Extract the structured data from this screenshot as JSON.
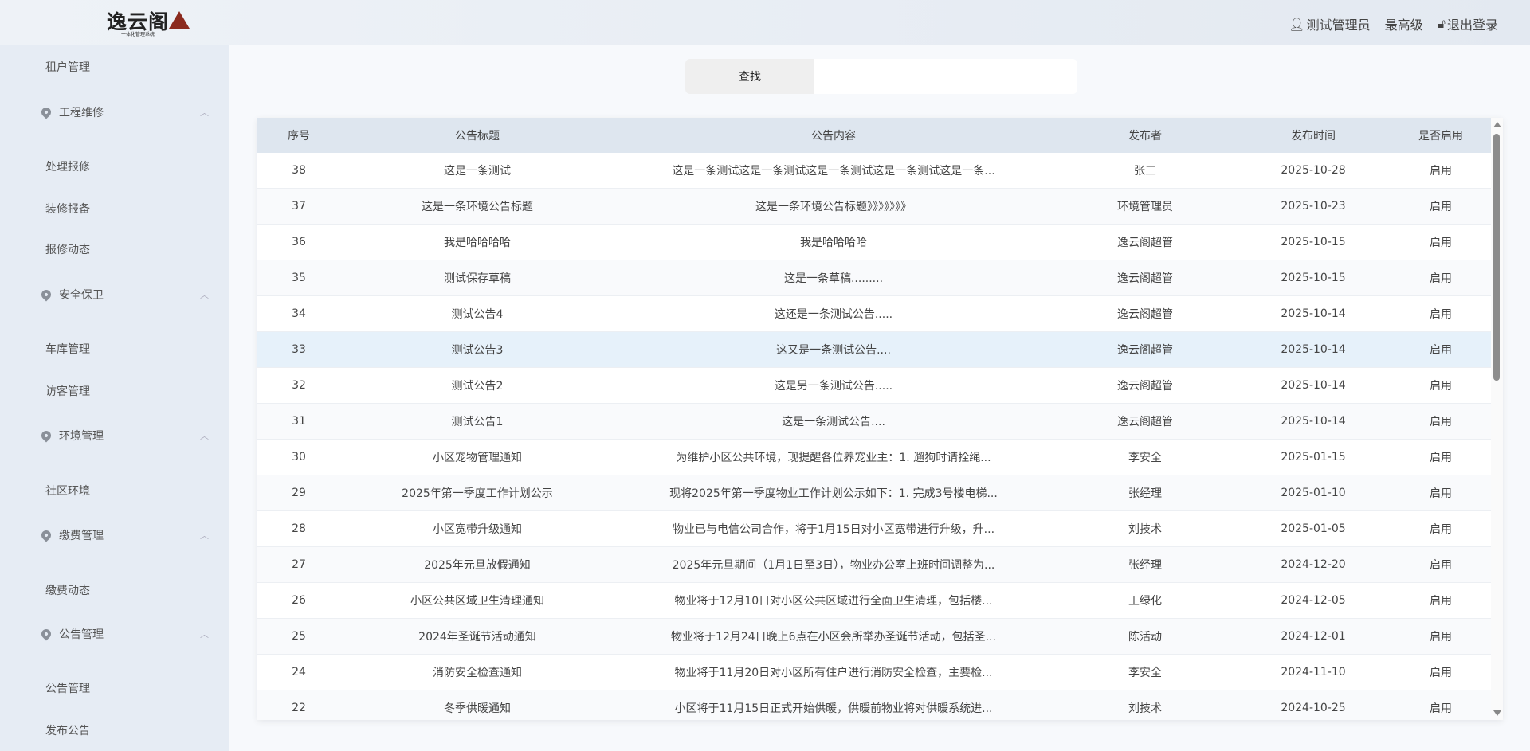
{
  "header": {
    "logo_text": "逸云阁",
    "logo_subtitle": "一体化管理系统",
    "user_name": "测试管理员",
    "user_level": "最高级",
    "logout": "退出登录"
  },
  "sidebar": {
    "top_item": "租户管理",
    "groups": [
      {
        "label": "工程维修",
        "items": [
          "处理报修",
          "装修报备",
          "报修动态"
        ]
      },
      {
        "label": "安全保卫",
        "items": [
          "车库管理",
          "访客管理"
        ]
      },
      {
        "label": "环境管理",
        "items": [
          "社区环境"
        ]
      },
      {
        "label": "缴费管理",
        "items": [
          "缴费动态"
        ]
      },
      {
        "label": "公告管理",
        "items": [
          "公告管理",
          "发布公告"
        ]
      }
    ]
  },
  "search": {
    "button": "查找",
    "value": ""
  },
  "table": {
    "columns": [
      "序号",
      "公告标题",
      "公告内容",
      "发布者",
      "发布时间",
      "是否启用"
    ],
    "rows": [
      [
        "38",
        "这是一条测试",
        "这是一条测试这是一条测试这是一条测试这是一条测试这是一条...",
        "张三",
        "2025-10-28",
        "启用"
      ],
      [
        "37",
        "这是一条环境公告标题",
        "这是一条环境公告标题》》》》》》》",
        "环境管理员",
        "2025-10-23",
        "启用"
      ],
      [
        "36",
        "我是哈哈哈哈",
        "我是哈哈哈哈",
        "逸云阁超管",
        "2025-10-15",
        "启用"
      ],
      [
        "35",
        "测试保存草稿",
        "这是一条草稿.........",
        "逸云阁超管",
        "2025-10-15",
        "启用"
      ],
      [
        "34",
        "测试公告4",
        "这还是一条测试公告.....",
        "逸云阁超管",
        "2025-10-14",
        "启用"
      ],
      [
        "33",
        "测试公告3",
        "这又是一条测试公告....",
        "逸云阁超管",
        "2025-10-14",
        "启用"
      ],
      [
        "32",
        "测试公告2",
        "这是另一条测试公告.....",
        "逸云阁超管",
        "2025-10-14",
        "启用"
      ],
      [
        "31",
        "测试公告1",
        "这是一条测试公告....",
        "逸云阁超管",
        "2025-10-14",
        "启用"
      ],
      [
        "30",
        "小区宠物管理通知",
        "为维护小区公共环境，现提醒各位养宠业主：1. 遛狗时请拴绳...",
        "李安全",
        "2025-01-15",
        "启用"
      ],
      [
        "29",
        "2025年第一季度工作计划公示",
        "现将2025年第一季度物业工作计划公示如下：1. 完成3号楼电梯...",
        "张经理",
        "2025-01-10",
        "启用"
      ],
      [
        "28",
        "小区宽带升级通知",
        "物业已与电信公司合作，将于1月15日对小区宽带进行升级，升...",
        "刘技术",
        "2025-01-05",
        "启用"
      ],
      [
        "27",
        "2025年元旦放假通知",
        "2025年元旦期间（1月1日至3日），物业办公室上班时间调整为...",
        "张经理",
        "2024-12-20",
        "启用"
      ],
      [
        "26",
        "小区公共区域卫生清理通知",
        "物业将于12月10日对小区公共区域进行全面卫生清理，包括楼...",
        "王绿化",
        "2024-12-05",
        "启用"
      ],
      [
        "25",
        "2024年圣诞节活动通知",
        "物业将于12月24日晚上6点在小区会所举办圣诞节活动，包括圣...",
        "陈活动",
        "2024-12-01",
        "启用"
      ],
      [
        "24",
        "消防安全检查通知",
        "物业将于11月20日对小区所有住户进行消防安全检查，主要检...",
        "李安全",
        "2024-11-10",
        "启用"
      ],
      [
        "22",
        "冬季供暖通知",
        "小区将于11月15日正式开始供暖，供暖前物业将对供暖系统进...",
        "刘技术",
        "2024-10-25",
        "启用"
      ]
    ]
  }
}
